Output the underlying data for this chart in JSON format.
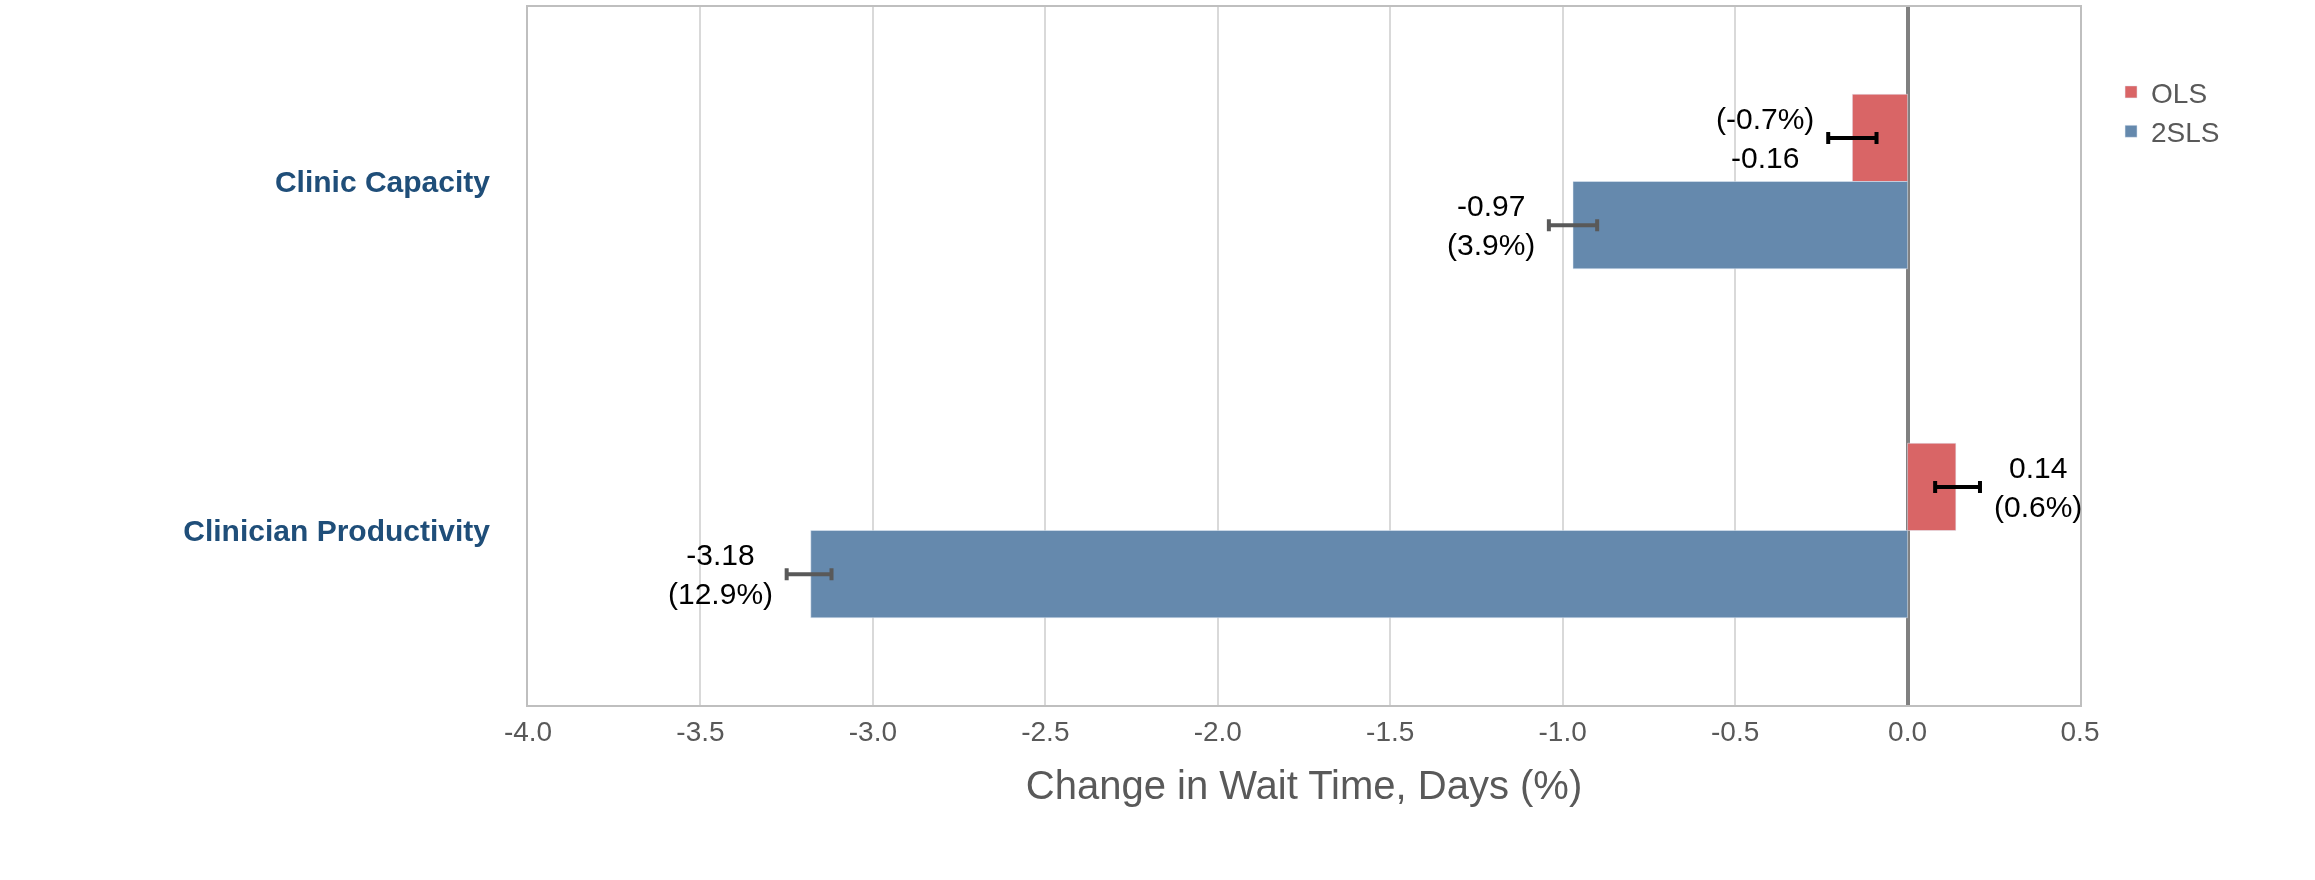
{
  "chart_data": {
    "type": "bar",
    "orientation": "horizontal",
    "xlabel": "Change in Wait Time, Days (%)",
    "categories": [
      "Clinic Capacity",
      "Clinician Productivity"
    ],
    "series": [
      {
        "name": "OLS",
        "color": "#d96566",
        "values": [
          -0.16,
          0.14
        ],
        "errors": [
          [
            -0.23,
            -0.09
          ],
          [
            0.08,
            0.21
          ]
        ],
        "value_labels": [
          "(-0.7%)\n-0.16",
          "0.14\n(0.6%)"
        ]
      },
      {
        "name": "2SLS",
        "color": "#6589ad",
        "values": [
          -0.97,
          -3.18
        ],
        "errors": [
          [
            -1.04,
            -0.9
          ],
          [
            -3.25,
            -3.12
          ]
        ],
        "value_labels": [
          "-0.97\n(3.9%)",
          "-3.18\n(12.9%)"
        ]
      }
    ],
    "xlim": [
      -4.0,
      0.5
    ],
    "xticks": [
      {
        "value": -4,
        "label": "-4.0"
      },
      {
        "value": -3.5,
        "label": "-3.5"
      },
      {
        "value": -3,
        "label": "-3.0"
      },
      {
        "value": -2.5,
        "label": "-2.5"
      },
      {
        "value": -2,
        "label": "-2.0"
      },
      {
        "value": -1.5,
        "label": "-1.5"
      },
      {
        "value": -1,
        "label": "-1.0"
      },
      {
        "value": -0.5,
        "label": "-0.5"
      },
      {
        "value": 0,
        "label": "0.0"
      },
      {
        "value": 0.5,
        "label": "0.5"
      }
    ],
    "grid": "x",
    "legend": "right"
  }
}
